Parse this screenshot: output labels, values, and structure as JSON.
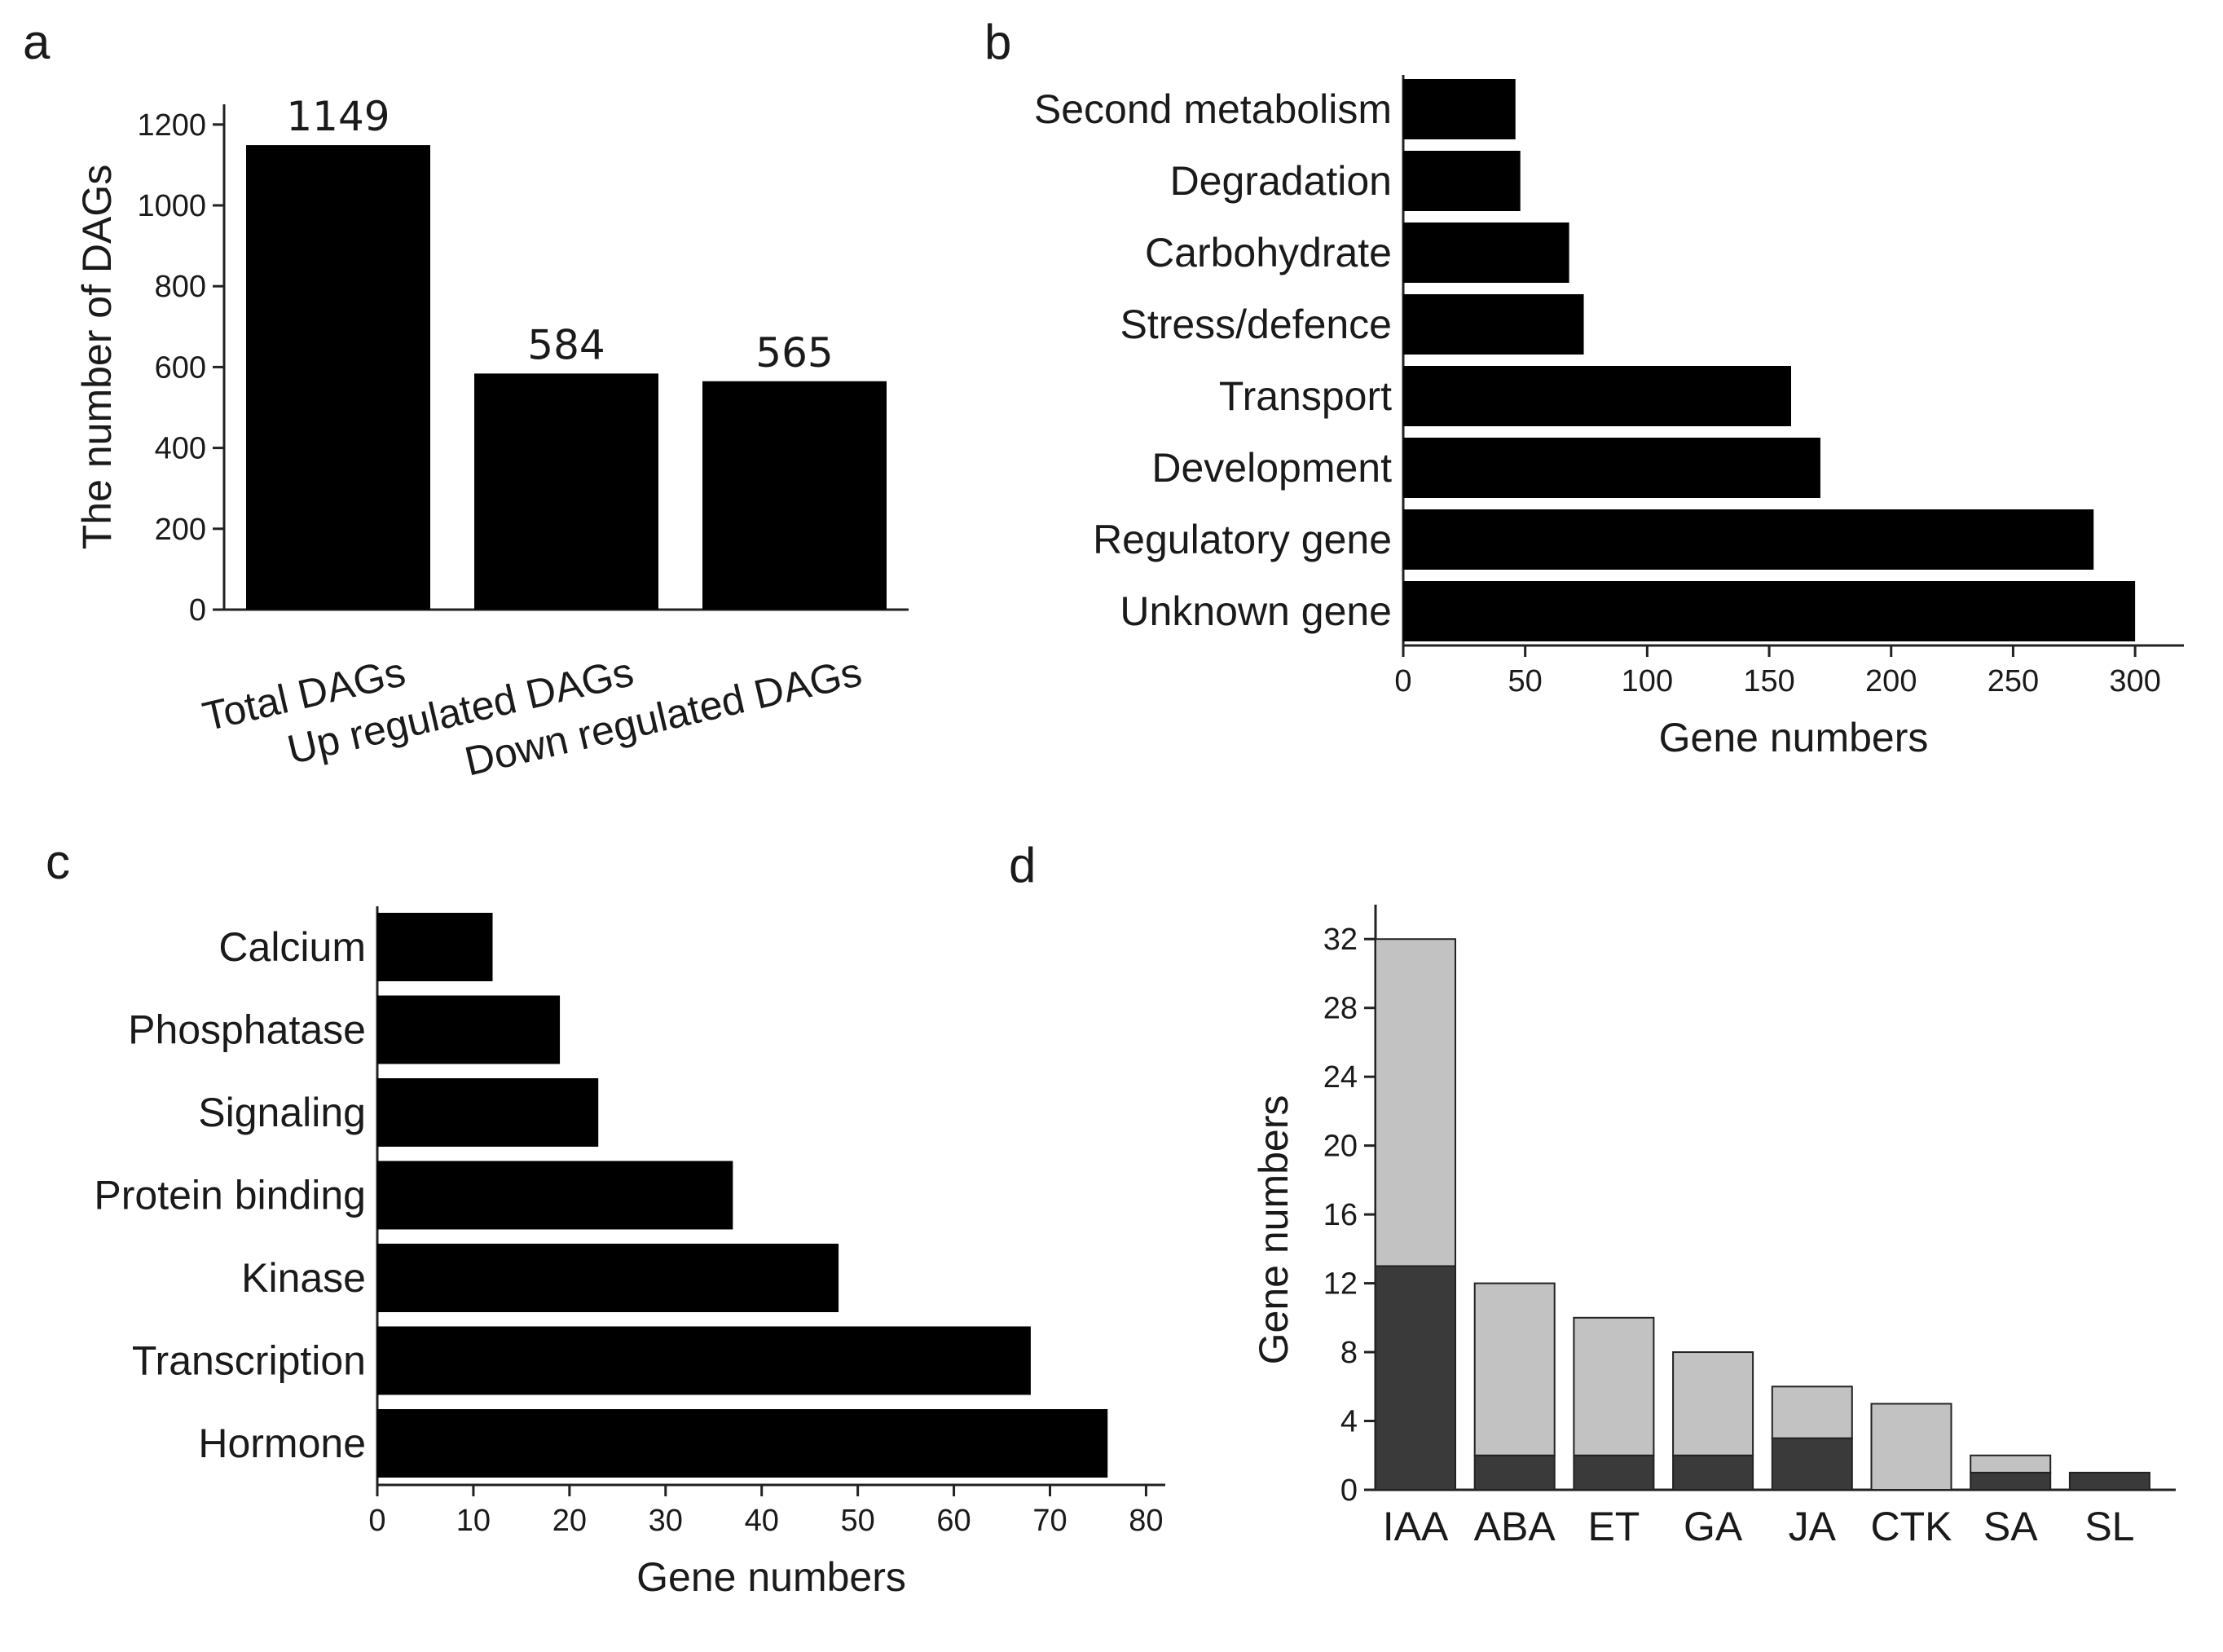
{
  "panels": {
    "a": "a",
    "b": "b",
    "c": "c",
    "d": "d"
  },
  "chart_data": [
    {
      "id": "a",
      "type": "bar",
      "title": "",
      "xlabel": "",
      "ylabel": "The number of DAGs",
      "categories": [
        "Total DAGs",
        "Up regulated DAGs",
        "Down regulated DAGs"
      ],
      "values": [
        1149,
        584,
        565
      ],
      "data_labels": [
        "1149",
        "584",
        "565"
      ],
      "ylim": [
        0,
        1250
      ],
      "yticks": [
        0,
        200,
        400,
        600,
        800,
        1000,
        1200
      ],
      "colors": {
        "bar": "#000000"
      }
    },
    {
      "id": "b",
      "type": "bar",
      "orientation": "horizontal",
      "title": "",
      "xlabel": "Gene numbers",
      "ylabel": "",
      "categories": [
        "Second metabolism",
        "Degradation",
        "Carbohydrate",
        "Stress/defence",
        "Transport",
        "Development",
        "Regulatory gene",
        "Unknown gene"
      ],
      "values": [
        46,
        48,
        68,
        74,
        159,
        171,
        283,
        300
      ],
      "xlim": [
        0,
        320
      ],
      "xticks": [
        0,
        50,
        100,
        150,
        200,
        250,
        300
      ],
      "colors": {
        "bar": "#000000"
      }
    },
    {
      "id": "c",
      "type": "bar",
      "orientation": "horizontal",
      "title": "",
      "xlabel": "Gene numbers",
      "ylabel": "",
      "categories": [
        "Calcium",
        "Phosphatase",
        "Signaling",
        "Protein binding",
        "Kinase",
        "Transcription",
        "Hormone"
      ],
      "values": [
        12,
        19,
        23,
        37,
        48,
        68,
        76
      ],
      "xlim": [
        0,
        82
      ],
      "xticks": [
        0,
        10,
        20,
        30,
        40,
        50,
        60,
        70,
        80
      ],
      "colors": {
        "bar": "#000000"
      }
    },
    {
      "id": "d",
      "type": "bar",
      "stacked": true,
      "title": "",
      "xlabel": "",
      "ylabel": "Gene numbers",
      "categories": [
        "IAA",
        "ABA",
        "ET",
        "GA",
        "JA",
        "CTK",
        "SA",
        "SL"
      ],
      "series": [
        {
          "name": "dark",
          "values": [
            13,
            2,
            2,
            2,
            3,
            0,
            1,
            1
          ],
          "color": "#3a3a3a"
        },
        {
          "name": "light",
          "values": [
            19,
            10,
            8,
            6,
            3,
            5,
            1,
            0
          ],
          "color": "#c2c2c2"
        }
      ],
      "ylim": [
        0,
        34
      ],
      "yticks": [
        0,
        4,
        8,
        12,
        16,
        20,
        24,
        28,
        32
      ]
    }
  ]
}
